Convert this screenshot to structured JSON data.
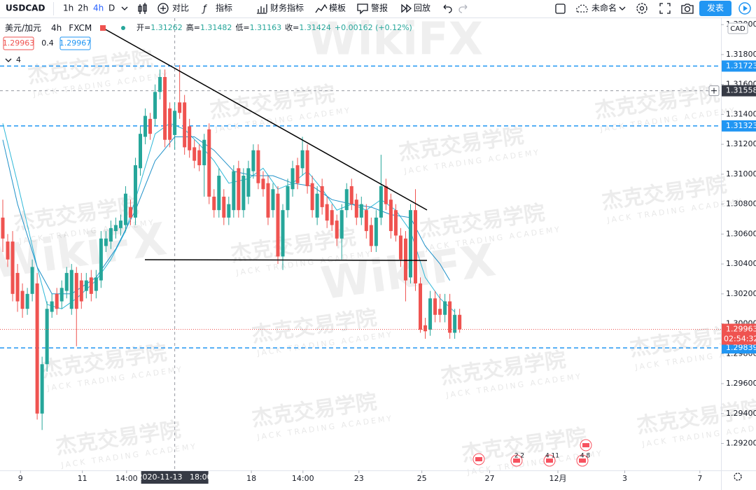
{
  "toolbar": {
    "symbol": "USDCAD",
    "intervals": [
      "1h",
      "2h",
      "4h",
      "D"
    ],
    "compare": "对比",
    "indicators": "指标",
    "financials": "财务指标",
    "templates": "模板",
    "alert": "警报",
    "replay": "回放",
    "layout_name": "未命名",
    "publish": "发表"
  },
  "quote": {
    "bid": "1.29963",
    "spread": "0.4",
    "ask": "1.29967",
    "indicator_count": "4"
  },
  "watermark": {
    "cn": "杰克交易学院",
    "en": "JACK TRADING ACADEMY",
    "brand": "WikiFX"
  },
  "events": [
    "2 2",
    "4 11",
    "4 8"
  ],
  "chart_data": {
    "type": "candlestick",
    "symbol_name": "美元/加元",
    "interval": "4h",
    "source": "FXCM",
    "currency": "CAD",
    "legend_labels": {
      "open": "开=",
      "high": "高=",
      "low": "低=",
      "close": "收="
    },
    "change": "+0.00162 (+0.12%)",
    "up_color": "#26a69a",
    "down_color": "#ef5350",
    "open": [
      1.3071,
      1.3055,
      1.3055,
      1.3034,
      1.3022,
      1.301,
      1.302,
      1.3027,
      1.294,
      1.2973,
      1.3008,
      1.302,
      1.3015,
      1.3022,
      1.301,
      1.3034,
      1.3029,
      1.3022,
      1.3031,
      1.3022,
      1.3029,
      1.3052,
      1.3055,
      1.3062,
      1.3064,
      1.3066,
      1.3078,
      1.3071,
      1.3104,
      1.3125,
      1.3137,
      1.3137,
      1.3155,
      1.3165,
      1.3144,
      1.31262,
      1.3148,
      1.3148,
      1.3132,
      1.3118,
      1.3116,
      1.3106,
      1.313,
      1.3085,
      1.3076,
      1.3085,
      1.3071,
      1.3076,
      1.3104,
      1.3076,
      1.3085,
      1.3102,
      1.3116,
      1.3097,
      1.3094,
      1.3076,
      1.3087,
      1.3045,
      1.3076,
      1.309,
      1.3106,
      1.3104,
      1.3116,
      1.3094,
      1.3071,
      1.3092,
      1.308,
      1.3076,
      1.3069,
      1.3057,
      1.3076,
      1.3092,
      1.3083,
      1.3071,
      1.3076,
      1.3066,
      1.3052,
      1.3071,
      1.3092,
      1.3083,
      1.3076,
      1.3059,
      1.3057,
      1.3031,
      1.3076,
      1.3027,
      1.2999,
      1.2996,
      1.3017,
      1.301,
      1.3006,
      1.3015,
      1.2994,
      1.3006
    ],
    "high": [
      1.3083,
      1.306,
      1.3062,
      1.304,
      1.3027,
      1.3024,
      1.3043,
      1.3034,
      1.2978,
      1.3015,
      1.302,
      1.3024,
      1.3029,
      1.3038,
      1.304,
      1.3038,
      1.3034,
      1.3034,
      1.3036,
      1.3036,
      1.3062,
      1.3062,
      1.3069,
      1.3071,
      1.3073,
      1.3092,
      1.3083,
      1.3111,
      1.3132,
      1.3144,
      1.3141,
      1.316,
      1.317,
      1.317,
      1.3148,
      1.31482,
      1.3173,
      1.3153,
      1.3137,
      1.3123,
      1.312,
      1.3127,
      1.3134,
      1.309,
      1.3104,
      1.309,
      1.3085,
      1.3106,
      1.3109,
      1.3104,
      1.3109,
      1.312,
      1.312,
      1.3102,
      1.3099,
      1.3094,
      1.3092,
      1.308,
      1.3097,
      1.3109,
      1.3111,
      1.3125,
      1.312,
      1.3099,
      1.3092,
      1.3097,
      1.3085,
      1.308,
      1.3073,
      1.308,
      1.3094,
      1.3097,
      1.3087,
      1.3085,
      1.308,
      1.3071,
      1.3076,
      1.3113,
      1.3097,
      1.3087,
      1.308,
      1.3064,
      1.3062,
      1.308,
      1.309,
      1.3031,
      1.3004,
      1.3022,
      1.3022,
      1.302,
      1.302,
      1.302,
      1.301,
      1.301
    ],
    "low": [
      1.3048,
      1.3038,
      1.3015,
      1.3008,
      1.3004,
      1.3006,
      1.3015,
      1.2936,
      1.2929,
      1.2968,
      1.3004,
      1.3006,
      1.301,
      1.3017,
      1.3006,
      1.2985,
      1.301,
      1.3017,
      1.3015,
      1.3017,
      1.3024,
      1.3048,
      1.305,
      1.3057,
      1.3059,
      1.3062,
      1.3066,
      1.3066,
      1.3099,
      1.312,
      1.3123,
      1.3132,
      1.315,
      1.3118,
      1.3118,
      1.31163,
      1.3137,
      1.3113,
      1.3111,
      1.3104,
      1.3102,
      1.3085,
      1.308,
      1.3071,
      1.3071,
      1.3066,
      1.3066,
      1.3071,
      1.3071,
      1.3071,
      1.308,
      1.3097,
      1.309,
      1.3085,
      1.3066,
      1.3071,
      1.304,
      1.3036,
      1.3071,
      1.3085,
      1.309,
      1.3099,
      1.3087,
      1.3071,
      1.3066,
      1.3073,
      1.3064,
      1.3062,
      1.3052,
      1.3043,
      1.3071,
      1.3076,
      1.3066,
      1.3066,
      1.3057,
      1.3048,
      1.3048,
      1.3066,
      1.3076,
      1.3057,
      1.3055,
      1.3038,
      1.3015,
      1.3027,
      1.3022,
      1.2994,
      1.299,
      1.2992,
      1.3001,
      1.3001,
      1.3001,
      1.299,
      1.299,
      1.2994
    ],
    "close": [
      1.3057,
      1.3043,
      1.302,
      1.3015,
      1.301,
      1.302,
      1.3038,
      1.294,
      1.2973,
      1.301,
      1.3015,
      1.301,
      1.3024,
      1.3034,
      1.3036,
      1.301,
      1.3015,
      1.3029,
      1.302,
      1.3031,
      1.3057,
      1.3057,
      1.3064,
      1.3066,
      1.3069,
      1.3087,
      1.3071,
      1.3106,
      1.3127,
      1.3139,
      1.3127,
      1.3155,
      1.3165,
      1.3123,
      1.3123,
      1.31424,
      1.3141,
      1.3118,
      1.3116,
      1.3109,
      1.3106,
      1.3123,
      1.3085,
      1.3076,
      1.3099,
      1.3071,
      1.308,
      1.3102,
      1.3076,
      1.3099,
      1.3104,
      1.3116,
      1.3094,
      1.309,
      1.3071,
      1.309,
      1.3045,
      1.3076,
      1.3092,
      1.3104,
      1.3094,
      1.3116,
      1.3092,
      1.3076,
      1.3087,
      1.3078,
      1.3069,
      1.3066,
      1.3057,
      1.3076,
      1.309,
      1.308,
      1.3071,
      1.308,
      1.3062,
      1.3052,
      1.3071,
      1.3092,
      1.308,
      1.3062,
      1.3059,
      1.3043,
      1.3029,
      1.3076,
      1.3027,
      1.2996,
      1.2995,
      1.3017,
      1.3006,
      1.3006,
      1.3015,
      1.2994,
      1.3006,
      1.29963
    ],
    "series": [
      {
        "color": "#2fb8d8",
        "x": [
          0,
          3,
          7,
          9,
          12,
          15,
          19,
          22,
          25,
          28,
          31,
          34,
          37,
          40,
          43,
          46,
          50,
          53,
          56,
          59,
          62,
          65,
          68,
          71,
          74,
          77,
          80,
          83,
          86,
          89,
          92
        ],
        "values": [
          1.3134,
          1.3094,
          1.3038,
          1.3013,
          1.301,
          1.3017,
          1.3029,
          1.3043,
          1.3062,
          1.3094,
          1.3127,
          1.3134,
          1.313,
          1.312,
          1.3109,
          1.3094,
          1.3097,
          1.3104,
          1.309,
          1.3094,
          1.3102,
          1.309,
          1.3076,
          1.308,
          1.3076,
          1.3083,
          1.3076,
          1.3062,
          1.3031,
          1.3017,
          1.3008
        ]
      },
      {
        "color": "#1e90c8",
        "x": [
          0,
          3,
          7,
          10,
          14,
          19,
          23,
          27,
          31,
          35,
          39,
          43,
          47,
          51,
          55,
          59,
          63,
          67,
          71,
          75,
          79,
          83,
          86,
          89,
          91
        ],
        "values": [
          1.3123,
          1.308,
          1.3038,
          1.302,
          1.302,
          1.3031,
          1.305,
          1.3076,
          1.3109,
          1.3125,
          1.3125,
          1.3116,
          1.3102,
          1.3099,
          1.3099,
          1.3094,
          1.3092,
          1.3083,
          1.308,
          1.3078,
          1.3073,
          1.3071,
          1.3052,
          1.304,
          1.3029
        ]
      }
    ],
    "hlines": [
      {
        "value": 1.31723,
        "label": "1.31723",
        "color": "#2196f3"
      },
      {
        "value": 1.31323,
        "label": "1.31323",
        "color": "#2196f3"
      },
      {
        "value": 1.29839,
        "label": "1.29839",
        "color": "#2196f3"
      }
    ],
    "last_price": {
      "value": 1.29963,
      "label": "1.29963",
      "countdown": "02:54:32",
      "color": "#ef5350"
    },
    "crosshair": {
      "x": {
        "value": 35,
        "label": "2020-11-13   18:00"
      },
      "y": {
        "value": 1.31558,
        "label": "1.31558"
      }
    },
    "xlim": [
      -0.57,
      146.2
    ],
    "xticks": [
      {
        "value": 3.6,
        "label": "9"
      },
      {
        "value": 16.2,
        "label": "11"
      },
      {
        "value": 25.2,
        "label": "14:00"
      },
      {
        "value": 50.6,
        "label": "18"
      },
      {
        "value": 61.1,
        "label": "14:00"
      },
      {
        "value": 72.5,
        "label": "23"
      },
      {
        "value": 85.3,
        "label": "25"
      },
      {
        "value": 99.1,
        "label": "27"
      },
      {
        "value": 113,
        "label": "12月"
      },
      {
        "value": 126.6,
        "label": "3"
      },
      {
        "value": 141.9,
        "label": "7"
      }
    ],
    "ylim": [
      1.2902,
      1.32043
    ],
    "yticks": [
      {
        "value": 1.32,
        "label": "1.32000"
      },
      {
        "value": 1.318,
        "label": "1.31800"
      },
      {
        "value": 1.316,
        "label": "1.31600"
      },
      {
        "value": 1.314,
        "label": "1.31400"
      },
      {
        "value": 1.312,
        "label": "1.31200"
      },
      {
        "value": 1.31,
        "label": "1.31000"
      },
      {
        "value": 1.308,
        "label": "1.30800"
      },
      {
        "value": 1.306,
        "label": "1.30600"
      },
      {
        "value": 1.304,
        "label": "1.30400"
      },
      {
        "value": 1.302,
        "label": "1.30200"
      },
      {
        "value": 1.3,
        "label": "1.30000"
      },
      {
        "value": 1.298,
        "label": "1.29800"
      },
      {
        "value": 1.296,
        "label": "1.29600"
      },
      {
        "value": 1.294,
        "label": "1.29400"
      },
      {
        "value": 1.292,
        "label": "1.29200"
      }
    ]
  }
}
